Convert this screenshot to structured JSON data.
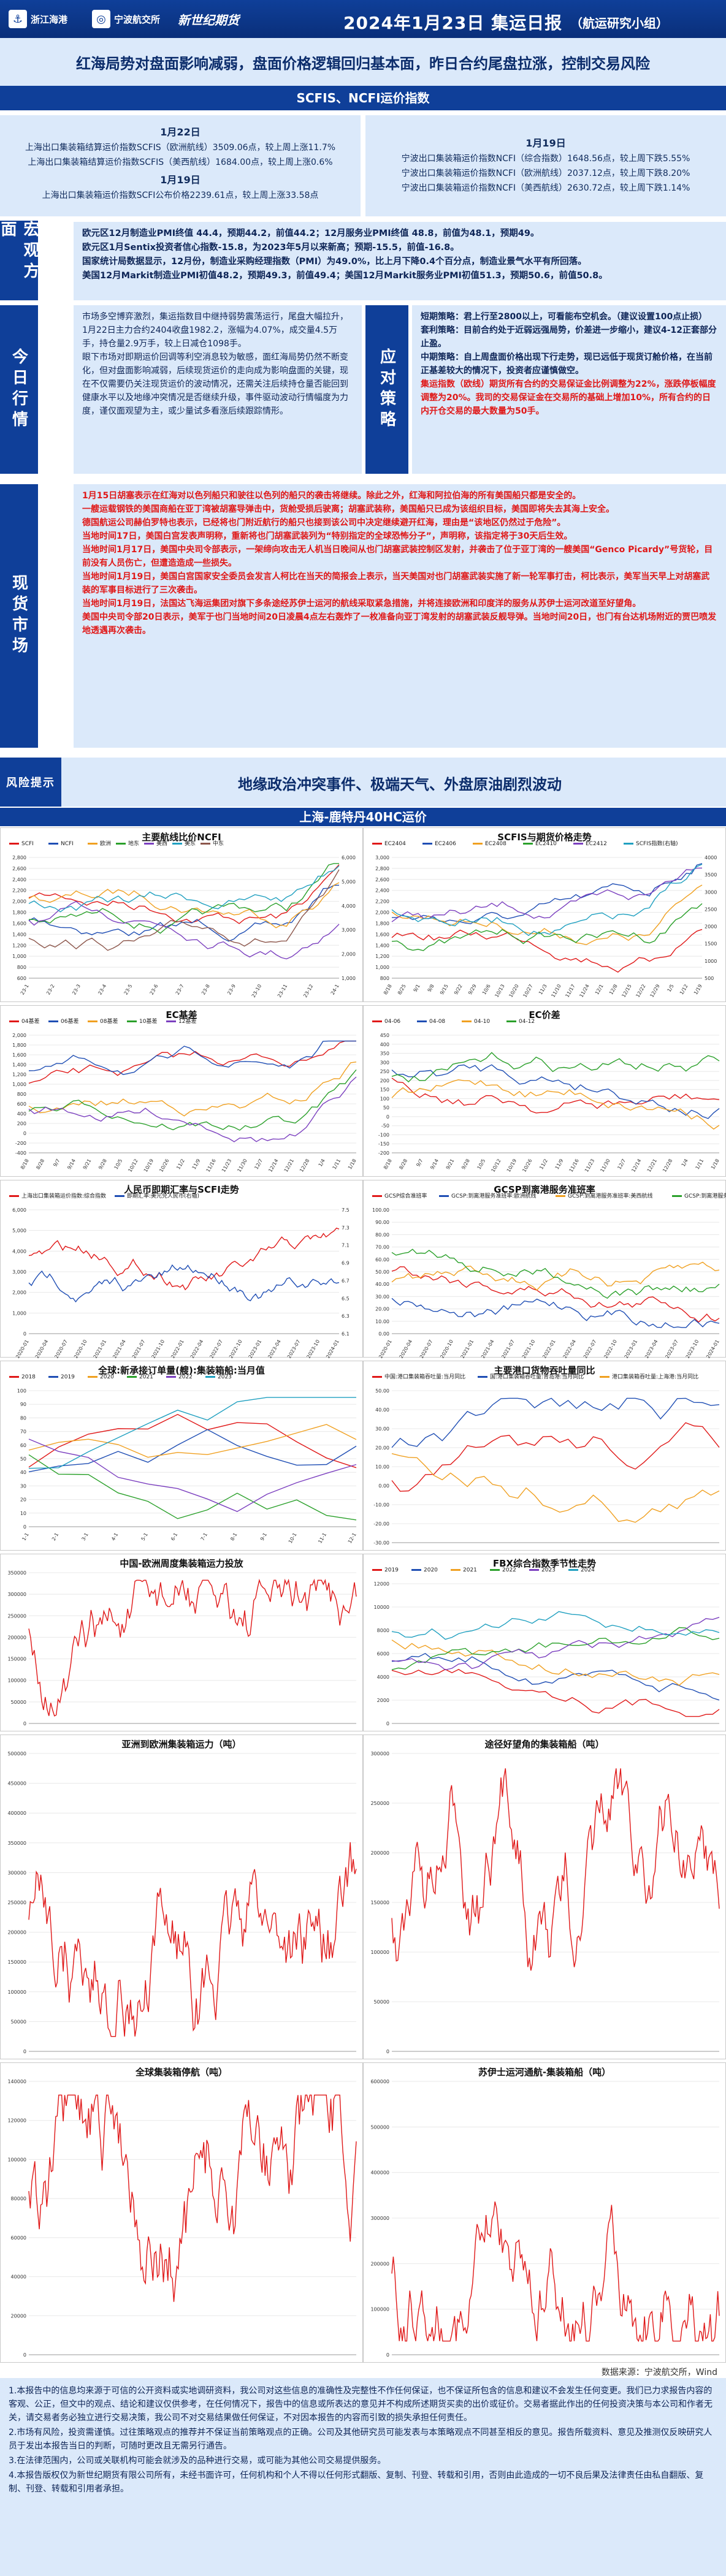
{
  "header": {
    "brand1": "浙江海港",
    "brand2": "宁波航交所",
    "brand3": "新世纪期货",
    "title": "2024年1月23日 集运日报",
    "group": "（航运研究小组）"
  },
  "headline": "红海局势对盘面影响减弱，盘面价格逻辑回归基本面，昨日合约尾盘拉涨，控制交易风险",
  "index_band": "SCFIS、NCFI运价指数",
  "index_left": {
    "date1": "1月22日",
    "l1": "上海出口集装箱结算运价指数SCFIS（欧洲航线）3509.06点，较上周上涨11.7%",
    "l2": "上海出口集装箱结算运价指数SCFIS（美西航线）1684.00点，较上周上涨0.6%",
    "date2": "1月19日",
    "l3": "上海出口集装箱运价指数SCFI公布价格2239.61点，较上周上涨33.58点"
  },
  "index_right": {
    "date": "1月19日",
    "l1": "宁波出口集装箱运价指数NCFI（综合指数）1648.56点，较上周下跌5.55%",
    "l2": "宁波出口集装箱运价指数NCFI（欧洲航线）2037.12点，较上周下跌8.20%",
    "l3": "宁波出口集装箱运价指数NCFI（美西航线）2630.72点，较上周下跌1.14%"
  },
  "macro": {
    "label": "宏观方面",
    "p1": "欧元区12月制造业PMI终值 44.4，预期44.2，前值44.2；12月服务业PMI终值 48.8，前值为48.1，预期49。",
    "p2": "欧元区1月Sentix投资者信心指数-15.8，为2023年5月以来新高；预期-15.5，前值-16.8。",
    "p3": "国家统计局数据显示，12月份，制造业采购经理指数（PMI）为49.0%，比上月下降0.4个百分点，制造业景气水平有所回落。",
    "p4": "美国12月Markit制造业PMI初值48.2，预期49.3，前值49.4；美国12月Markit服务业PMI初值51.3，预期50.6，前值50.8。"
  },
  "today": {
    "label": "今日行情",
    "text": "市场多空博弈激烈，集运指数目中继持弱势震荡运行，尾盘大幅拉升，1月22日主力合约2404收盘1982.2，涨幅为4.07%，成交量4.5万手，持仓量2.9万手，较上日减仓1098手。\n眼下市场对即期运价回调等利空消息较为敏感，面红海局势仍然不断变化，但对盘面影响减弱，后续现货运价的走向成为影响盘面的关键，现在不仅需要仍关注现货运价的波动情况，还需关注后续持仓量否能回到健康水平以及地缘冲突情况是否继续升级，事件驱动波动行情幅度为力度，谨仅面观望为主，或少量试多看涨后续跟踪情形。"
  },
  "strategy": {
    "label": "应对策略",
    "p1": "短期策略：君上行至2800以上，可看能布空机会。（建议设置100点止损）",
    "p2": "套利策略：目前合约处于近弱远强局势，价差进一步缩小，建议4-12正套部分止盈。",
    "p3": "中期策略：自上周盘面价格出现下行走势，现已远低于现货订舱价格，在当前正基差较大的情况下，投资者应谨慎做空。",
    "p4": "集运指数（欧线）期货所有合约的交易保证金比例调整为22%，涨跌停板幅度调整为20%。我司的交易保证金在交易所的基础上增加10%，所有合约的日内开仓交易的最大数量为50手。"
  },
  "market": {
    "label": "现货市场",
    "lines": [
      "1月15日胡塞表示在红海对以色列船只和驶往以色列的船只的袭击将继续。除此之外，红海和阿拉伯海的所有美国船只都是安全的。",
      "一艘运载钢铁的美国商船在亚丁湾被胡塞导弹击中，货舱受损后驶离；胡塞武装称，美国船只已成为该组织目标，美国即将失去其海上安全。",
      "德国航运公司赫伯罗特也表示，已经将也门附近航行的船只也接到该公司中决定继续避开红海，理由是“该地区仍然过于危险”。",
      "当地时间17日，美国白宫发表声明称，重新将也门胡塞武装列为“特别指定的全球恐怖分子”，声明称，该指定将于30天后生效。",
      "当地时间1月17日，美国中央司令部表示，一架缔向攻击无人机当日晚间从也门胡塞武装控制区发射，并袭击了位于亚丁湾的一艘美国“Genco Picardy”号货轮，目前没有人员伤亡，但遭造造成一些损失。",
      "当地时间1月19日，美国白宫国家安全委员会发言人柯比在当天的简报会上表示，当天美国对也门胡塞武装实施了新一轮军事打击，柯比表示，美军当天早上对胡塞武装的军事目标进行了三次袭击。",
      "当地时间1月19日，法国达飞海运集团对旗下多条途经苏伊士运河的航线采取紧急措施，并将连接欧洲和印度洋的服务从苏伊士运河改道至好望角。",
      "美国中央司令部20日表示，美军于也门当地时间20日凌晨4点左右轰炸了一枚准备向亚丁湾发射的胡塞武装反舰导弹。当地时间20日，也门有台达机场附近的贾巴喷发地透遇再次袭击。"
    ]
  },
  "risk": {
    "label": "风险提示",
    "text": "地缘政治冲突事件、极端天气、外盘原油剧烈波动"
  },
  "chart_band": "上海-鹿特丹40HC运价",
  "charts": {
    "c1": "主要航线比价NCFI",
    "c1_legend": [
      "SCFI",
      "NCFI",
      "欧洲",
      "地东",
      "美西",
      "美东",
      "中东"
    ],
    "c1_yticks": [
      "2,800",
      "2,600",
      "2,400",
      "2,200",
      "2,000",
      "1,800",
      "1,600",
      "1,400",
      "1,200",
      "1,000",
      "800",
      "600"
    ],
    "c1_xticks": [
      "23-1",
      "23-2",
      "23-3",
      "23-4",
      "23-5",
      "23-6",
      "23-7",
      "23-8",
      "23-9",
      "23-10",
      "23-11",
      "23-12",
      "24-1"
    ],
    "c1_ry": [
      "6,000",
      "5,000",
      "4,000",
      "3,000",
      "2,000",
      "1,000"
    ],
    "c2": "SCFIS与期货价格走势",
    "c2_legend": [
      "EC2404",
      "EC2406",
      "EC2408",
      "EC2410",
      "EC2412",
      "SCFIS指数(右轴)"
    ],
    "c2_yticks": [
      "3,000",
      "2,800",
      "2,600",
      "2,400",
      "2,200",
      "2,000",
      "1,800",
      "1,600",
      "1,400",
      "1,200",
      "1,000",
      "800"
    ],
    "c2_ry": [
      "4000",
      "3500",
      "3000",
      "2500",
      "2000",
      "1500",
      "1000",
      "500"
    ],
    "c2_xticks": [
      "8/18",
      "8/25",
      "9/1",
      "9/8",
      "9/15",
      "9/22",
      "9/29",
      "10/6",
      "10/13",
      "10/20",
      "10/27",
      "11/3",
      "11/10",
      "11/17",
      "11/24",
      "12/1",
      "12/8",
      "12/15",
      "12/22",
      "12/29",
      "1/5",
      "1/12",
      "1/19"
    ],
    "c3": "EC基差",
    "c3_legend": [
      "04基差",
      "06基差",
      "08基差",
      "10基差",
      "12基差"
    ],
    "c3_yticks": [
      "2,000",
      "1,800",
      "1,600",
      "1,400",
      "1,200",
      "1,000",
      "800",
      "600",
      "400",
      "200",
      "0",
      "-200",
      "-400"
    ],
    "c3_xticks": [
      "8/18",
      "8/28",
      "9/7",
      "9/14",
      "9/21",
      "9/28",
      "10/5",
      "10/12",
      "10/19",
      "10/26",
      "11/2",
      "11/9",
      "11/16",
      "11/23",
      "11/30",
      "12/7",
      "12/14",
      "12/21",
      "12/28",
      "1/4",
      "1/11",
      "1/18"
    ],
    "c4": "EC价差",
    "c4_legend": [
      "04-06",
      "04-08",
      "04-10",
      "04-12"
    ],
    "c4_yticks": [
      "450",
      "400",
      "350",
      "300",
      "250",
      "200",
      "150",
      "100",
      "50",
      "0",
      "-50",
      "-100",
      "-150",
      "-200"
    ],
    "c5": "人民币即期汇率与SCFI走势",
    "c5_legend": [
      "上海出口集装箱运价指数:综合指数",
      "即期汇率:美元兑人民币(右轴)"
    ],
    "c5_yticks": [
      "6,000",
      "5,000",
      "4,000",
      "3,000",
      "2,000",
      "1,000",
      "0"
    ],
    "c5_ry": [
      "7.5",
      "7.3",
      "7.1",
      "6.9",
      "6.7",
      "6.5",
      "6.3",
      "6.1"
    ],
    "c5_xticks": [
      "2020-01",
      "2020-04",
      "2020-07",
      "2020-10",
      "2021-01",
      "2021-04",
      "2021-07",
      "2021-10",
      "2022-01",
      "2022-04",
      "2022-07",
      "2022-10",
      "2023-01",
      "2023-04",
      "2023-07",
      "2023-10",
      "2024-01"
    ],
    "c6": "GCSP到离港服务准班率",
    "c6_legend": [
      "GCSP综合准班率",
      "GCSP:到离港服务准班率:欧洲航线",
      "GCSP:到离港服务准班率:美西航线",
      "GCSP:到离港服务准班率:亚洲-欧洲"
    ],
    "c6_yticks": [
      "100.00",
      "90.00",
      "80.00",
      "70.00",
      "60.00",
      "50.00",
      "40.00",
      "30.00",
      "20.00",
      "10.00",
      "0.00"
    ],
    "c6_xticks": [
      "2020-01",
      "2020-04",
      "2020-07",
      "2020-10",
      "2021-01",
      "2021-04",
      "2021-07",
      "2021-10",
      "2022-01",
      "2022-04",
      "2022-07",
      "2022-10",
      "2023-01",
      "2023-04",
      "2023-07",
      "2023-10",
      "2024-01"
    ],
    "c7": "全球:新承接订单量(艘):集装箱船:当月值",
    "c7_legend": [
      "2018",
      "2019",
      "2020",
      "2021",
      "2022",
      "2023"
    ],
    "c7_yticks": [
      "100",
      "90",
      "80",
      "70",
      "60",
      "50",
      "40",
      "30",
      "20",
      "10",
      "0"
    ],
    "c7_xticks": [
      "1-1",
      "2-1",
      "3-1",
      "4-1",
      "5-1",
      "6-1",
      "7-1",
      "8-1",
      "9-1",
      "10-1",
      "11-1",
      "12-1"
    ],
    "c8": "主要港口货物吞吐量同比",
    "c8_legend": [
      "中国:港口集装箱吞吐量:当月同比",
      "国:港口集装箱吞吐量:青岛港:当月同比",
      "港口集装箱吞吐量:上海港:当月同比"
    ],
    "c8_yticks": [
      "50.00",
      "40.00",
      "30.00",
      "20.00",
      "10.00",
      "0.00",
      "-10.00",
      "-20.00",
      "-30.00"
    ],
    "c9": "中国-欧洲周度集装箱运力投放",
    "c9_yticks": [
      "350000",
      "300000",
      "250000",
      "200000",
      "150000",
      "100000",
      "50000",
      "0"
    ],
    "c10": "FBX综合指数季节性走势",
    "c10_legend": [
      "2019",
      "2020",
      "2021",
      "2022",
      "2023",
      "2024"
    ],
    "c10_yticks": [
      "12000",
      "10000",
      "8000",
      "6000",
      "4000",
      "2000",
      "0"
    ],
    "c11": "亚洲到欧洲集装箱运力（吨）",
    "c11_yticks": [
      "500000",
      "450000",
      "400000",
      "350000",
      "300000",
      "250000",
      "200000",
      "150000",
      "100000",
      "50000",
      "0"
    ],
    "c12": "途径好望角的集装箱船（吨）",
    "c12_yticks": [
      "300000",
      "250000",
      "200000",
      "150000",
      "100000",
      "50000",
      "0"
    ],
    "c13": "全球集装箱停航（吨）",
    "c13_yticks": [
      "140000",
      "120000",
      "100000",
      "80000",
      "60000",
      "40000",
      "20000",
      "0"
    ],
    "c14": "苏伊士运河通航-集装箱船（吨）",
    "c14_yticks": [
      "600000",
      "500000",
      "400000",
      "300000",
      "200000",
      "100000",
      "0"
    ]
  },
  "source": "数据来源：宁波航交所，Wind",
  "disclaimer": [
    "1.本报告中的信息均来源于可信的公开资料或实地调研资料，我公司对这些信息的准确性及完整性不作任何保证，也不保证所包含的信息和建议不会发生任何变更。我们已力求报告内容的客观、公正，但文中的观点、结论和建议仅供参考，在任何情况下，报告中的信息或所表达的意见并不构成所述期货买卖的出价或征价。交易者据此作出的任何投资决策与本公司和作者无关，请交易者务必独立进行交易决策，我公司不对交易结果做任何保证，不对因本报告的内容而引致的损失承担任何责任。",
    "2.市场有风险，投资需谨慎。过往策略观点的推荐并不保证当前策略观点的正确。公司及其他研究员可能发表与本策略观点不同甚至相反的意见。报告所载资料、意见及推测仅反映研究人员于发出本报告当日的判断，可随时更改且无需另行通告。",
    "3.在法律范围内，公司或关联机构可能会就涉及的品种进行交易，或可能为其他公司交易提供服务。",
    "4.本报告版权仅为新世纪期货有限公司所有，未经书面许可，任何机构和个人不得以任何形式翻版、复制、刊登、转载和引用，否则由此造成的一切不良后果及法律责任由私自翻版、复制、刊登、转载和引用者承担。"
  ],
  "colors": {
    "navy": "#0f3f99",
    "light": "#dbe9fa",
    "red": "#e01818"
  }
}
